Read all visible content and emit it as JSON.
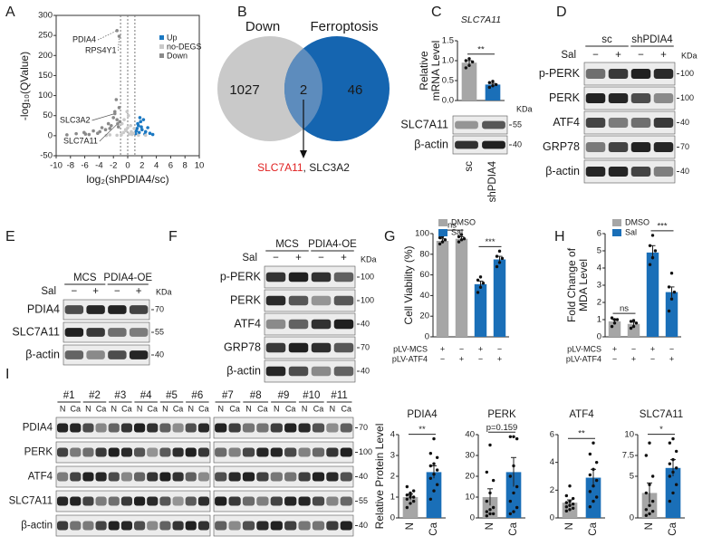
{
  "panel_labels": [
    "A",
    "B",
    "C",
    "D",
    "E",
    "F",
    "G",
    "H",
    "I"
  ],
  "venn": {
    "sets": [
      {
        "name": "Down",
        "count": 1027,
        "color": "#c9c9c9",
        "label_color": "#9a9a9a"
      },
      {
        "name": "Ferroptosis",
        "count": 46,
        "color": "#1565b0",
        "label_color": "#1565b0"
      }
    ],
    "overlap_count": 2,
    "overlap_color": "#5d8cbd",
    "genes": [
      {
        "text": "SLC7A11",
        "color": "#e02020"
      },
      {
        "text": ", SLC3A2",
        "color": "#1a1a1a"
      }
    ]
  },
  "blots": [
    {
      "rows": [
        {
          "label": "SLC7A11",
          "kda": 55
        },
        {
          "label": "β-actin",
          "kda": 40
        }
      ],
      "kda_unit": "KDa"
    },
    {
      "groups": [
        "sc",
        "shPDIA4"
      ],
      "treatment": "Sal",
      "signs": [
        "−",
        "+",
        "−",
        "+"
      ],
      "kda_unit": "KDa",
      "rows": [
        {
          "label": "p-PERK",
          "kda": 100
        },
        {
          "label": "PERK",
          "kda": 100
        },
        {
          "label": "ATF4",
          "kda": 40
        },
        {
          "label": "GRP78",
          "kda": 70
        },
        {
          "label": "β-actin",
          "kda": 40
        }
      ]
    },
    {
      "groups": [
        "MCS",
        "PDIA4-OE"
      ],
      "treatment": "Sal",
      "signs": [
        "−",
        "+",
        "−",
        "+"
      ],
      "kda_unit": "KDa",
      "rows": [
        {
          "label": "PDIA4",
          "kda": 70
        },
        {
          "label": "SLC7A11",
          "kda": 55
        },
        {
          "label": "β-actin",
          "kda": 40
        }
      ]
    },
    {
      "groups": [
        "MCS",
        "PDIA4-OE"
      ],
      "treatment": "Sal",
      "signs": [
        "−",
        "+",
        "−",
        "+"
      ],
      "kda_unit": "KDa",
      "rows": [
        {
          "label": "p-PERK",
          "kda": 100
        },
        {
          "label": "PERK",
          "kda": 100
        },
        {
          "label": "ATF4",
          "kda": 40
        },
        {
          "label": "GRP78",
          "kda": 70
        },
        {
          "label": "β-actin",
          "kda": 40
        }
      ]
    },
    {
      "patients": [
        "#1",
        "#2",
        "#3",
        "#4",
        "#5",
        "#6",
        "#7",
        "#8",
        "#9",
        "#10",
        "#11"
      ],
      "lane_labels": [
        "N",
        "Ca"
      ],
      "rows": [
        {
          "label": "PDIA4",
          "kda": 70
        },
        {
          "label": "PERK",
          "kda": 100
        },
        {
          "label": "ATF4",
          "kda": 40
        },
        {
          "label": "SLC7A11",
          "kda": 55
        },
        {
          "label": "β-actin",
          "kda": 40
        }
      ]
    }
  ],
  "chart_data": [
    {
      "type": "scatter",
      "xlabel": "log₂(shPDIA4/sc)",
      "ylabel": "-log₁₀(QValue)",
      "xlim": [
        -10,
        10
      ],
      "ylim": [
        -50,
        300
      ],
      "xticks": [
        -10,
        -8,
        -6,
        -4,
        -2,
        0,
        2,
        4,
        6,
        8,
        10
      ],
      "yticks": [
        -50,
        0,
        50,
        100,
        150,
        200,
        250,
        300
      ],
      "vlines": [
        -1,
        0,
        1
      ],
      "legend": "upper right",
      "series": [
        {
          "name": "Up",
          "color": "#1a78c2",
          "x": [
            1.1,
            1.2,
            1.3,
            1.4,
            1.5,
            1.6,
            1.7,
            1.8,
            1.9,
            2.0,
            2.2,
            2.4,
            2.5,
            2.8,
            3.1,
            3.5
          ],
          "y": [
            5,
            12,
            18,
            30,
            25,
            8,
            45,
            35,
            22,
            15,
            40,
            4,
            10,
            20,
            6,
            3
          ]
        },
        {
          "name": "no-DEGS",
          "color": "#c9c9c9",
          "x": [
            -0.9,
            -0.8,
            -0.6,
            -0.5,
            -0.3,
            -0.2,
            -0.1,
            0,
            0.1,
            0.2,
            0.4,
            0.5,
            0.6,
            0.8,
            0.9,
            -1.5,
            -2.5,
            -3,
            1.5,
            2.5
          ],
          "y": [
            2,
            30,
            8,
            40,
            15,
            12,
            60,
            20,
            50,
            4,
            25,
            10,
            3,
            6,
            18,
            1,
            2,
            0.5,
            1,
            1
          ]
        },
        {
          "name": "Down",
          "color": "#8a8a8a",
          "x": [
            -8.5,
            -7.2,
            -6.1,
            -5.9,
            -5.4,
            -4.8,
            -4.2,
            -3.9,
            -3.6,
            -3.1,
            -2.7,
            -2.5,
            -2.3,
            -2.0,
            -1.8,
            -1.6,
            -1.5,
            -1.3,
            -1.2,
            -1.1
          ],
          "y": [
            2,
            5,
            8,
            4,
            3,
            12,
            6,
            10,
            20,
            15,
            30,
            18,
            25,
            45,
            60,
            90,
            40,
            22,
            70,
            35
          ]
        }
      ],
      "annotations": [
        {
          "text": "PDIA4",
          "x": -1.5,
          "y": 262
        },
        {
          "text": "RPS4Y1",
          "x": -1.2,
          "y": 248
        },
        {
          "text": "SLC3A2",
          "x": -1.8,
          "y": 55
        },
        {
          "text": "SLC7A11",
          "x": -1.4,
          "y": 30
        }
      ]
    },
    {
      "type": "bar",
      "title": "SLC7A11",
      "ylabel": [
        "Relative",
        "mRNA Level"
      ],
      "categories": [
        "sc",
        "shPDIA4"
      ],
      "values": [
        0.95,
        0.4
      ],
      "errors": [
        0.05,
        0.03
      ],
      "points": [
        [
          0.82,
          0.88,
          0.97,
          1.0,
          1.05
        ],
        [
          0.33,
          0.37,
          0.4,
          0.45,
          0.48
        ]
      ],
      "colors": [
        "#a6a6a6",
        "#1a6fb8"
      ],
      "ylim": [
        0,
        1.5
      ],
      "yticks": [
        {
          "value": 0,
          "label": "0.0"
        },
        0.5,
        {
          "value": 1,
          "label": "1.0"
        },
        1.5
      ],
      "sig": "**"
    },
    {
      "type": "bar",
      "ylabel": [
        "Cell Viability (%)"
      ],
      "legend": "upper left",
      "series": [
        {
          "name": "DMSO",
          "color": "#a6a6a6",
          "values": [
            93,
            95
          ],
          "errors": [
            2,
            2
          ],
          "points": [
            [
              90,
              92,
              94,
              96,
              97
            ],
            [
              92,
              94,
              95,
              97,
              99
            ]
          ],
          "sig": "ns"
        },
        {
          "name": "Sal",
          "color": "#1a6fb8",
          "values": [
            51,
            75
          ],
          "errors": [
            3,
            3
          ],
          "points": [
            [
              43,
              48,
              52,
              55,
              58
            ],
            [
              68,
              72,
              76,
              78,
              83
            ]
          ],
          "sig": "***"
        }
      ],
      "conditions": [
        {
          "label": "pLV-MCS",
          "signs": [
            "+",
            "−",
            "+",
            "−"
          ]
        },
        {
          "label": "pLV-ATF4",
          "signs": [
            "−",
            "+",
            "−",
            "+"
          ]
        }
      ],
      "ylim": [
        0,
        100
      ],
      "yticks": [
        0,
        20,
        40,
        60,
        80,
        100
      ]
    },
    {
      "type": "bar",
      "ylabel": [
        "Fold Change of",
        "MDA Level"
      ],
      "legend": "upper left",
      "series": [
        {
          "name": "DMSO",
          "color": "#a6a6a6",
          "values": [
            0.9,
            0.75
          ],
          "errors": [
            0.1,
            0.1
          ],
          "points": [
            [
              0.6,
              0.8,
              1.0,
              1.1,
              1.0
            ],
            [
              0.5,
              0.6,
              0.8,
              0.9,
              0.95
            ]
          ],
          "sig": "ns"
        },
        {
          "name": "Sal",
          "color": "#1a6fb8",
          "values": [
            4.9,
            2.6
          ],
          "errors": [
            0.4,
            0.3
          ],
          "points": [
            [
              4.2,
              4.6,
              5.0,
              5.3,
              5.9
            ],
            [
              1.5,
              2.2,
              2.6,
              2.9,
              3.7
            ]
          ],
          "sig": "***"
        }
      ],
      "conditions": [
        {
          "label": "pLV-MCS",
          "signs": [
            "+",
            "−",
            "+",
            "−"
          ]
        },
        {
          "label": "pLV-ATF4",
          "signs": [
            "−",
            "+",
            "−",
            "+"
          ]
        }
      ],
      "ylim": [
        0,
        6
      ],
      "yticks": [
        0,
        1,
        2,
        3,
        4,
        5,
        6
      ]
    },
    {
      "type": "bar",
      "title": "PDIA4",
      "ylabel": [
        "Relative Protein Level"
      ],
      "categories": [
        "N",
        "Ca"
      ],
      "values": [
        1.0,
        2.2
      ],
      "errors": [
        0.15,
        0.3
      ],
      "points": [
        [
          0.5,
          0.7,
          0.8,
          0.9,
          1.0,
          1.0,
          1.1,
          1.2,
          1.3,
          1.5,
          1.1
        ],
        [
          0.9,
          1.3,
          1.6,
          1.9,
          2.1,
          2.3,
          2.5,
          2.6,
          2.9,
          3.1,
          3.8
        ]
      ],
      "colors": [
        "#a6a6a6",
        "#1a6fb8"
      ],
      "ylim": [
        0,
        4
      ],
      "yticks": [
        0,
        1,
        2,
        3,
        4
      ],
      "sig": "**"
    },
    {
      "type": "bar",
      "title": "PERK",
      "categories": [
        "N",
        "Ca"
      ],
      "values": [
        10,
        22
      ],
      "errors": [
        4,
        7
      ],
      "points": [
        [
          1,
          2,
          2,
          3,
          4,
          5,
          8,
          12,
          18,
          22,
          35
        ],
        [
          2,
          3,
          5,
          8,
          12,
          15,
          20,
          25,
          38,
          39,
          39
        ]
      ],
      "colors": [
        "#a6a6a6",
        "#1a6fb8"
      ],
      "ylim": [
        0,
        40
      ],
      "yticks": [
        0,
        10,
        20,
        30,
        40
      ],
      "sig": "p=0.159"
    },
    {
      "type": "bar",
      "title": "ATF4",
      "categories": [
        "N",
        "Ca"
      ],
      "values": [
        1.1,
        2.9
      ],
      "errors": [
        0.2,
        0.6
      ],
      "points": [
        [
          0.5,
          0.6,
          0.7,
          0.8,
          0.9,
          1.0,
          1.1,
          1.2,
          1.4,
          1.6,
          2.3
        ],
        [
          0.8,
          1.2,
          1.5,
          1.9,
          2.3,
          2.7,
          3.1,
          3.5,
          4.0,
          4.6,
          5.4
        ]
      ],
      "colors": [
        "#a6a6a6",
        "#1a6fb8"
      ],
      "ylim": [
        0,
        6
      ],
      "yticks": [
        0,
        2,
        4,
        6
      ],
      "sig": "**"
    },
    {
      "type": "bar",
      "title": "SLC7A11",
      "categories": [
        "N",
        "Ca"
      ],
      "values": [
        3,
        6
      ],
      "errors": [
        1.2,
        1
      ],
      "points": [
        [
          0.3,
          0.5,
          0.8,
          1,
          1.5,
          2,
          3,
          4,
          5,
          7.5,
          9
        ],
        [
          2,
          3,
          4,
          5,
          5.5,
          6,
          6.5,
          7,
          8,
          9,
          9.5
        ]
      ],
      "colors": [
        "#a6a6a6",
        "#1a6fb8"
      ],
      "ylim": [
        0,
        10
      ],
      "yticks": [
        0,
        5,
        7.5,
        10
      ],
      "sig": "*"
    }
  ]
}
